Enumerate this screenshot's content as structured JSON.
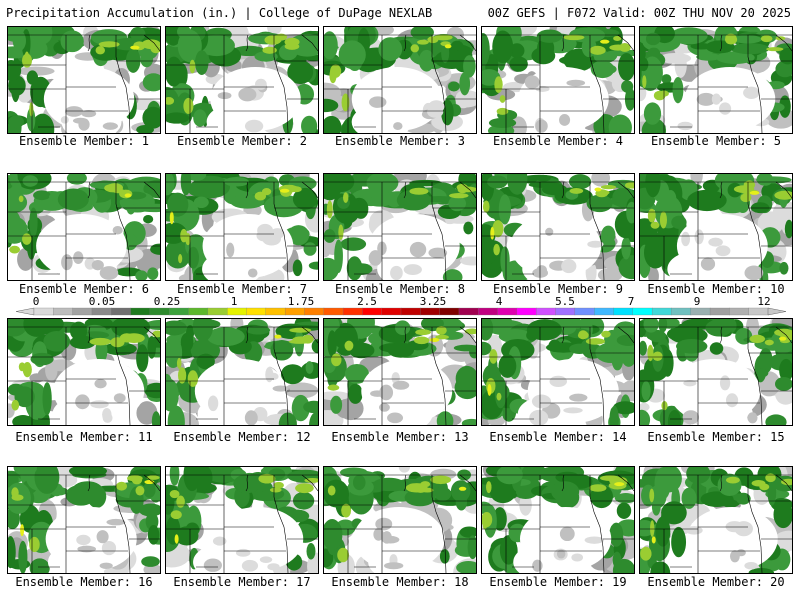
{
  "header": {
    "left": "Precipitation Accumulation (in.) | College of DuPage NEXLAB",
    "right": "00Z GEFS | F072 Valid: 00Z THU NOV 20 2025"
  },
  "panels": [
    {
      "label": "Ensemble Member: 1"
    },
    {
      "label": "Ensemble Member: 2"
    },
    {
      "label": "Ensemble Member: 3"
    },
    {
      "label": "Ensemble Member: 4"
    },
    {
      "label": "Ensemble Member: 5"
    },
    {
      "label": "Ensemble Member: 6"
    },
    {
      "label": "Ensemble Member: 7"
    },
    {
      "label": "Ensemble Member: 8"
    },
    {
      "label": "Ensemble Member: 9"
    },
    {
      "label": "Ensemble Member: 10"
    },
    {
      "label": "Ensemble Member: 11"
    },
    {
      "label": "Ensemble Member: 12"
    },
    {
      "label": "Ensemble Member: 13"
    },
    {
      "label": "Ensemble Member: 14"
    },
    {
      "label": "Ensemble Member: 15"
    },
    {
      "label": "Ensemble Member: 16"
    },
    {
      "label": "Ensemble Member: 17"
    },
    {
      "label": "Ensemble Member: 18"
    },
    {
      "label": "Ensemble Member: 19"
    },
    {
      "label": "Ensemble Member: 20"
    }
  ],
  "legend": {
    "ticks": [
      "0",
      "0.05",
      "0.25",
      "1",
      "1.75",
      "2.5",
      "3.25",
      "4",
      "5.5",
      "7",
      "9",
      "12"
    ],
    "colors": [
      "#d9d9d9",
      "#bdbdbd",
      "#a3a3a3",
      "#8a8a8a",
      "#707070",
      "#1e7b1e",
      "#2e8b2e",
      "#3ca23c",
      "#5cb82c",
      "#9acd32",
      "#e5f200",
      "#ffe000",
      "#ffc000",
      "#ffa000",
      "#ff7f00",
      "#ff5a00",
      "#ff3000",
      "#ff0000",
      "#e00000",
      "#c00000",
      "#a00000",
      "#800000",
      "#a00050",
      "#c00080",
      "#e000b0",
      "#ff00ff",
      "#d050ff",
      "#a070ff",
      "#7090ff",
      "#40b8ff",
      "#00e0ff",
      "#00ffff",
      "#40d8d8",
      "#70c0c0",
      "#9ab0b0",
      "#a0a0a0",
      "#b0b0b0",
      "#c8c8c8"
    ]
  }
}
